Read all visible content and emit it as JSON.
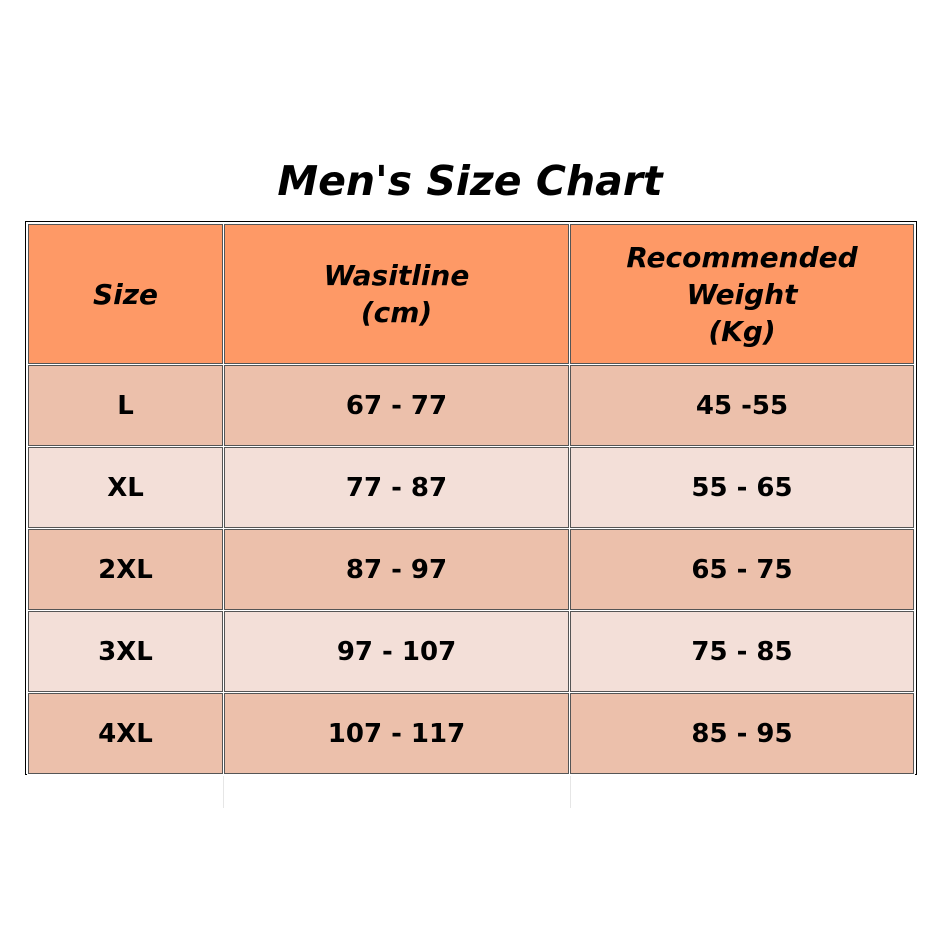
{
  "title": "Men's Size Chart",
  "headers": {
    "size": "Size",
    "waist_line1": "Wasitline",
    "waist_line2": "(cm)",
    "weight_line1": "Recommended",
    "weight_line2": "Weight",
    "weight_line3": "(Kg)"
  },
  "rows": [
    {
      "size": "L",
      "waist": "67 - 77",
      "weight": "45 -55"
    },
    {
      "size": "XL",
      "waist": "77 - 87",
      "weight": "55 - 65"
    },
    {
      "size": "2XL",
      "waist": "87 - 97",
      "weight": "65 - 75"
    },
    {
      "size": "3XL",
      "waist": "97 - 107",
      "weight": "75 - 85"
    },
    {
      "size": "4XL",
      "waist": "107 - 117",
      "weight": "85 - 95"
    }
  ],
  "colors": {
    "header": "#fe9966",
    "row_dark": "#ecc0ab",
    "row_light": "#f3dfd8"
  }
}
